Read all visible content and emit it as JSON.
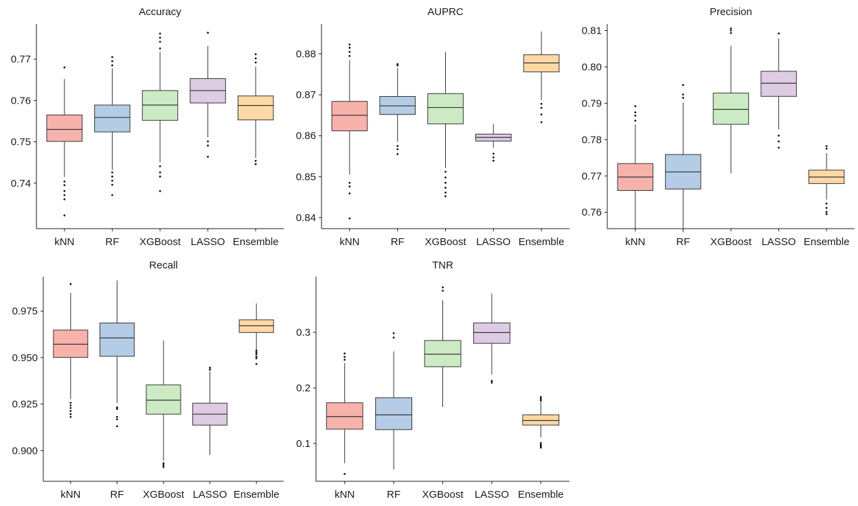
{
  "colors": {
    "kNN": "#F8B2AC",
    "RF": "#B5CCE6",
    "XGBoost": "#CCEBC5",
    "LASSO": "#DECBE4",
    "Ensemble": "#FED9A6",
    "line": "#333333",
    "axis": "#1a1a1a"
  },
  "chart_data": [
    {
      "type": "box",
      "title": "Accuracy",
      "categories": [
        "kNN",
        "RF",
        "XGBoost",
        "LASSO",
        "Ensemble"
      ],
      "yticks": [
        0.74,
        0.75,
        0.76,
        0.77
      ],
      "ytick_labels": [
        "0.74",
        "0.75",
        "0.76",
        "0.77"
      ],
      "ylim": [
        0.729,
        0.7785
      ],
      "boxes": [
        {
          "min": 0.7415,
          "q1": 0.7501,
          "median": 0.753,
          "q3": 0.7565,
          "max": 0.7652,
          "outliers": [
            0.7322,
            0.7361,
            0.7371,
            0.7381,
            0.7395,
            0.7404,
            0.768
          ]
        },
        {
          "min": 0.7432,
          "q1": 0.7524,
          "median": 0.7559,
          "q3": 0.7589,
          "max": 0.7678,
          "outliers": [
            0.7371,
            0.7396,
            0.7406,
            0.7416,
            0.7426,
            0.7685,
            0.7695,
            0.7705
          ]
        },
        {
          "min": 0.7451,
          "q1": 0.7552,
          "median": 0.7589,
          "q3": 0.7624,
          "max": 0.7718,
          "outliers": [
            0.7381,
            0.7416,
            0.7426,
            0.7441,
            0.7726,
            0.7742,
            0.7752,
            0.7762
          ]
        },
        {
          "min": 0.7511,
          "q1": 0.7594,
          "median": 0.7624,
          "q3": 0.7653,
          "max": 0.7732,
          "outliers": [
            0.7464,
            0.7491,
            0.7501,
            0.7764
          ]
        },
        {
          "min": 0.7461,
          "q1": 0.7553,
          "median": 0.7588,
          "q3": 0.7611,
          "max": 0.7682,
          "outliers": [
            0.7446,
            0.7454,
            0.7692,
            0.7702,
            0.7712
          ]
        }
      ]
    },
    {
      "type": "box",
      "title": "AUPRC",
      "categories": [
        "kNN",
        "RF",
        "XGBoost",
        "LASSO",
        "Ensemble"
      ],
      "yticks": [
        0.84,
        0.85,
        0.86,
        0.87,
        0.88
      ],
      "ytick_labels": [
        "0.84",
        "0.85",
        "0.86",
        "0.87",
        "0.88"
      ],
      "ylim": [
        0.8373,
        0.8873
      ],
      "boxes": [
        {
          "min": 0.8505,
          "q1": 0.8612,
          "median": 0.865,
          "q3": 0.8684,
          "max": 0.8785,
          "outliers": [
            0.8398,
            0.8459,
            0.8476,
            0.8485,
            0.8795,
            0.8805,
            0.8815,
            0.8823
          ]
        },
        {
          "min": 0.8585,
          "q1": 0.8652,
          "median": 0.8673,
          "q3": 0.8696,
          "max": 0.8765,
          "outliers": [
            0.8555,
            0.8567,
            0.8575,
            0.8772,
            0.8775
          ]
        },
        {
          "min": 0.8521,
          "q1": 0.8629,
          "median": 0.8669,
          "q3": 0.8703,
          "max": 0.8805,
          "outliers": [
            0.8452,
            0.8461,
            0.8473,
            0.8485,
            0.8498,
            0.8512
          ]
        },
        {
          "min": 0.8571,
          "q1": 0.8587,
          "median": 0.8596,
          "q3": 0.8604,
          "max": 0.8629,
          "outliers": [
            0.8539,
            0.8547,
            0.8556
          ]
        },
        {
          "min": 0.8687,
          "q1": 0.8756,
          "median": 0.8778,
          "q3": 0.8798,
          "max": 0.8855,
          "outliers": [
            0.8633,
            0.8652,
            0.8668,
            0.8678
          ]
        }
      ]
    },
    {
      "type": "box",
      "title": "Precision",
      "categories": [
        "kNN",
        "RF",
        "XGBoost",
        "LASSO",
        "Ensemble"
      ],
      "yticks": [
        0.76,
        0.77,
        0.78,
        0.79,
        0.8,
        0.81
      ],
      "ytick_labels": [
        "0.76",
        "0.77",
        "0.78",
        "0.79",
        "0.80",
        "0.81"
      ],
      "ylim": [
        0.7555,
        0.8118
      ],
      "boxes": [
        {
          "min": 0.7551,
          "q1": 0.766,
          "median": 0.7697,
          "q3": 0.7734,
          "max": 0.7842,
          "outliers": [
            0.7852,
            0.7866,
            0.7875,
            0.7892
          ]
        },
        {
          "min": 0.7545,
          "q1": 0.7664,
          "median": 0.7711,
          "q3": 0.7759,
          "max": 0.7902,
          "outliers": [
            0.7915,
            0.7924,
            0.795
          ]
        },
        {
          "min": 0.7707,
          "q1": 0.7842,
          "median": 0.7883,
          "q3": 0.7928,
          "max": 0.8058,
          "outliers": [
            0.8093,
            0.81,
            0.8106
          ]
        },
        {
          "min": 0.7828,
          "q1": 0.7919,
          "median": 0.7955,
          "q3": 0.7988,
          "max": 0.8078,
          "outliers": [
            0.7778,
            0.7795,
            0.7811,
            0.8092
          ]
        },
        {
          "min": 0.7635,
          "q1": 0.7679,
          "median": 0.7697,
          "q3": 0.7716,
          "max": 0.7763,
          "outliers": [
            0.7595,
            0.7601,
            0.7612,
            0.7624,
            0.7775,
            0.7782
          ]
        }
      ]
    },
    {
      "type": "box",
      "title": "Recall",
      "categories": [
        "kNN",
        "RF",
        "XGBoost",
        "LASSO",
        "Ensemble"
      ],
      "yticks": [
        0.9,
        0.925,
        0.95,
        0.975
      ],
      "ytick_labels": [
        "0.900",
        "0.925",
        "0.950",
        "0.975"
      ],
      "ylim": [
        0.8835,
        0.9935
      ],
      "boxes": [
        {
          "min": 0.9276,
          "q1": 0.9501,
          "median": 0.9572,
          "q3": 0.9648,
          "max": 0.9848,
          "outliers": [
            0.9181,
            0.9196,
            0.9213,
            0.9229,
            0.9243,
            0.9257,
            0.9895
          ]
        },
        {
          "min": 0.9256,
          "q1": 0.9507,
          "median": 0.9606,
          "q3": 0.9686,
          "max": 0.9915,
          "outliers": [
            0.9131,
            0.9168,
            0.9181,
            0.9224,
            0.9232
          ]
        },
        {
          "min": 0.8945,
          "q1": 0.9196,
          "median": 0.9271,
          "q3": 0.9353,
          "max": 0.9592,
          "outliers": [
            0.8912,
            0.8922,
            0.8932
          ]
        },
        {
          "min": 0.8976,
          "q1": 0.9137,
          "median": 0.9196,
          "q3": 0.9255,
          "max": 0.9424,
          "outliers": [
            0.9435,
            0.9446
          ]
        },
        {
          "min": 0.9542,
          "q1": 0.9635,
          "median": 0.9671,
          "q3": 0.9703,
          "max": 0.9792,
          "outliers": [
            0.9466,
            0.9496,
            0.9506,
            0.9518,
            0.9527,
            0.9537
          ]
        }
      ]
    },
    {
      "type": "box",
      "title": "TNR",
      "categories": [
        "kNN",
        "RF",
        "XGBoost",
        "LASSO",
        "Ensemble"
      ],
      "yticks": [
        0.1,
        0.2,
        0.3
      ],
      "ytick_labels": [
        "0.1",
        "0.2",
        "0.3"
      ],
      "ylim": [
        0.032,
        0.4
      ],
      "boxes": [
        {
          "min": 0.0645,
          "q1": 0.1258,
          "median": 0.1484,
          "q3": 0.1732,
          "max": 0.2448,
          "outliers": [
            0.0453,
            0.2505,
            0.2556,
            0.2618
          ]
        },
        {
          "min": 0.0532,
          "q1": 0.1249,
          "median": 0.1515,
          "q3": 0.1823,
          "max": 0.2658,
          "outliers": [
            0.2905,
            0.2983
          ]
        },
        {
          "min": 0.1656,
          "q1": 0.2381,
          "median": 0.2606,
          "q3": 0.2852,
          "max": 0.3574,
          "outliers": [
            0.3748,
            0.3809
          ]
        },
        {
          "min": 0.2239,
          "q1": 0.2801,
          "median": 0.2995,
          "q3": 0.3169,
          "max": 0.3698,
          "outliers": [
            0.2094,
            0.2126
          ]
        },
        {
          "min": 0.1112,
          "q1": 0.1331,
          "median": 0.1413,
          "q3": 0.1516,
          "max": 0.1754,
          "outliers": [
            0.0925,
            0.0951,
            0.0972,
            0.1006,
            0.1774,
            0.1803,
            0.1835
          ]
        }
      ]
    }
  ]
}
